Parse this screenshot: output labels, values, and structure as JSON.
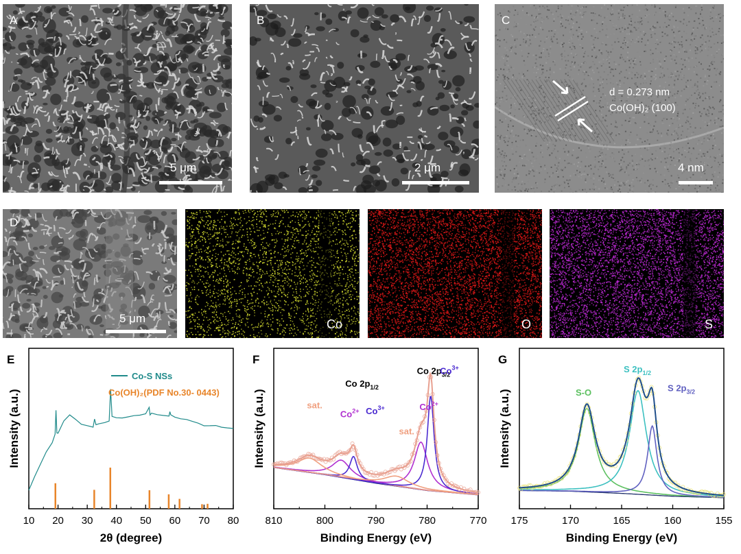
{
  "panels": {
    "A": {
      "label": "A",
      "scale_bar": "5 μm"
    },
    "B": {
      "label": "B",
      "scale_bar": "2 μm"
    },
    "C": {
      "label": "C",
      "scale_bar": "4 nm",
      "annotation_1": "d = 0.273 nm",
      "annotation_2": "Co(OH)₂ (100)"
    },
    "D": {
      "label": "D",
      "scale_bar": "5 μm"
    },
    "D2": {
      "element": "Co",
      "dot_color": "#d8e030"
    },
    "D3": {
      "element": "O",
      "dot_color": "#e01818"
    },
    "D4": {
      "element": "S",
      "dot_color": "#c02ad8"
    }
  },
  "chart_data": [
    {
      "panel": "E",
      "type": "line",
      "xlabel": "2θ (degree)",
      "ylabel": "Intensity (a.u.)",
      "xlim": [
        10,
        80
      ],
      "xticks": [
        "10",
        "20",
        "30",
        "40",
        "50",
        "60",
        "70",
        "80"
      ],
      "legend": [
        {
          "name": "Co-S NSs",
          "color": "#1f8a8a"
        },
        {
          "name": "Co(OH)₂(PDF No.30- 0443)",
          "color": "#e8852a"
        }
      ],
      "series": [
        {
          "name": "Co-S NSs",
          "color": "#1f8a8a",
          "x": [
            10,
            12,
            14,
            16,
            18,
            19,
            19.3,
            19.6,
            20,
            22,
            24,
            26,
            28,
            30,
            32,
            32.5,
            33,
            34,
            36,
            37.5,
            38,
            38.5,
            40,
            42,
            44,
            46,
            48,
            50,
            51.2,
            51.5,
            52,
            54,
            56,
            58,
            58.3,
            58.6,
            60,
            62,
            64,
            66,
            68,
            70,
            72,
            74,
            76,
            78,
            80
          ],
          "y": [
            10,
            18,
            27,
            35,
            40,
            46,
            62,
            47,
            47,
            55,
            58,
            56,
            53,
            51,
            50,
            56,
            52,
            52,
            53,
            55,
            75,
            57,
            56,
            56,
            57,
            58,
            58,
            59,
            64,
            59,
            59,
            58,
            58,
            58,
            61,
            58,
            57,
            56,
            55,
            54,
            53,
            52,
            52,
            51,
            50,
            50,
            49
          ]
        }
      ],
      "reference_bars": {
        "color": "#e8852a",
        "x": [
          19.1,
          32.4,
          37.9,
          51.3,
          57.9,
          61.6,
          69.3,
          71.2
        ],
        "heights": [
          0.62,
          0.46,
          1.0,
          0.45,
          0.35,
          0.24,
          0.11,
          0.12
        ]
      }
    },
    {
      "panel": "F",
      "type": "line",
      "xlabel": "Binding Energy (eV)",
      "ylabel": "Intensity (a.u.)",
      "xlim": [
        810,
        770
      ],
      "xticks": [
        "810",
        "800",
        "790",
        "780",
        "770"
      ],
      "annotations": [
        {
          "text": "Co 2p",
          "sub": "1/2",
          "x": 796,
          "y": 0.78,
          "color": "#000000"
        },
        {
          "text": "Co 2p",
          "sub": "3/2",
          "x": 782,
          "y": 0.87,
          "color": "#000000"
        },
        {
          "text": "sat.",
          "sub": "",
          "x": 803.5,
          "y": 0.63,
          "color": "#f0a080"
        },
        {
          "text": "Co",
          "sup": "2+",
          "x": 797,
          "y": 0.57,
          "color": "#b030d0"
        },
        {
          "text": "Co",
          "sup": "3+",
          "x": 792,
          "y": 0.59,
          "color": "#4a2ad0"
        },
        {
          "text": "sat.",
          "sub": "",
          "x": 785.5,
          "y": 0.45,
          "color": "#f0a080"
        },
        {
          "text": "Co",
          "sup": "2+",
          "x": 781.5,
          "y": 0.62,
          "color": "#b030d0"
        },
        {
          "text": "Co",
          "sup": "3+",
          "x": 777.5,
          "y": 0.87,
          "color": "#4a2ad0"
        }
      ],
      "background": {
        "x": [
          810,
          800,
          790,
          780,
          770
        ],
        "y": [
          0.22,
          0.17,
          0.11,
          0.06,
          0.03
        ]
      },
      "peaks": [
        {
          "label": "Co2+ 2p1/2",
          "color": "#b030d0",
          "center": 796.8,
          "width": 2.2,
          "amplitude": 0.12
        },
        {
          "label": "Co3+ 2p1/2",
          "color": "#4a2ad0",
          "center": 794.4,
          "width": 0.9,
          "amplitude": 0.16
        },
        {
          "label": "sat. 2p1/2",
          "color": "#f0a080",
          "center": 803.0,
          "width": 3.0,
          "amplitude": 0.1
        },
        {
          "label": "Co2+ 2p3/2",
          "color": "#b030d0",
          "center": 781.2,
          "width": 1.6,
          "amplitude": 0.33
        },
        {
          "label": "Co3+ 2p3/2",
          "color": "#4a2ad0",
          "center": 779.3,
          "width": 0.8,
          "amplitude": 0.66
        },
        {
          "label": "sat. 2p3/2",
          "color": "#f0a080",
          "center": 786.0,
          "width": 3.0,
          "amplitude": 0.07
        }
      ],
      "envelope_color": "#e8a090"
    },
    {
      "panel": "G",
      "type": "line",
      "xlabel": "Binding Energy (eV)",
      "ylabel": "Intensity (a.u.)",
      "xlim": [
        175,
        155
      ],
      "xticks": [
        "175",
        "170",
        "165",
        "160",
        "155"
      ],
      "annotations": [
        {
          "text": "S-O",
          "sub": "",
          "x": 169.5,
          "y": 0.72,
          "color": "#5cc060"
        },
        {
          "text": "S 2p",
          "sub": "1/2",
          "x": 164.8,
          "y": 0.88,
          "color": "#3cc0c0"
        },
        {
          "text": "S 2p",
          "sub": "3/2",
          "x": 160.5,
          "y": 0.75,
          "color": "#6060c0"
        }
      ],
      "background": {
        "x": [
          175,
          170,
          165,
          160,
          155
        ],
        "y": [
          0.06,
          0.055,
          0.04,
          0.02,
          0.01
        ]
      },
      "peaks": [
        {
          "label": "S-O",
          "color": "#5cc060",
          "center": 168.4,
          "width": 1.0,
          "amplitude": 0.58
        },
        {
          "label": "S 2p1/2",
          "color": "#3cc0c0",
          "center": 163.4,
          "width": 1.0,
          "amplitude": 0.72
        },
        {
          "label": "S 2p3/2",
          "color": "#6060c0",
          "center": 162.0,
          "width": 0.55,
          "amplitude": 0.48
        }
      ],
      "envelope_color": "#1f4e8a",
      "point_color": "#e8e070"
    }
  ]
}
